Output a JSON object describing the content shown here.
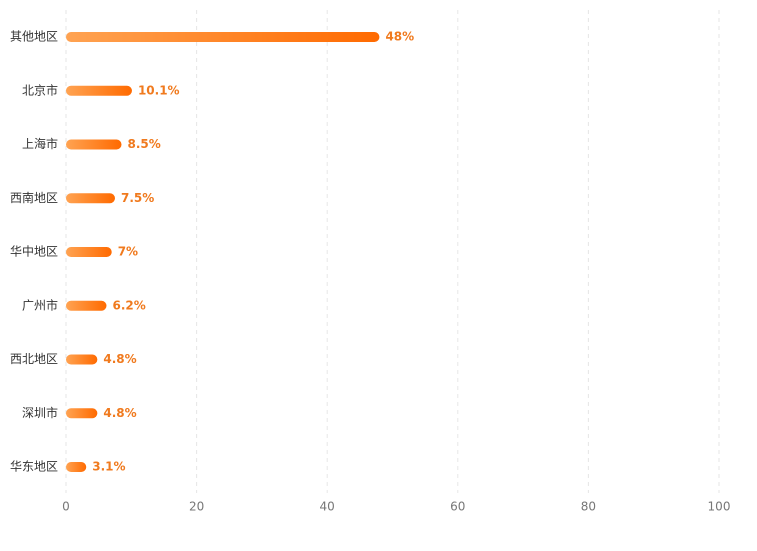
{
  "chart_data": {
    "type": "bar",
    "orientation": "horizontal",
    "categories": [
      "其他地区",
      "北京市",
      "上海市",
      "西南地区",
      "华中地区",
      "广州市",
      "西北地区",
      "深圳市",
      "华东地区"
    ],
    "values": [
      48,
      10.1,
      8.5,
      7.5,
      7,
      6.2,
      4.8,
      4.8,
      3.1
    ],
    "value_labels": [
      "48%",
      "10.1%",
      "8.5%",
      "7.5%",
      "7%",
      "6.2%",
      "4.8%",
      "4.8%",
      "3.1%"
    ],
    "gradient": [
      "#ffa352",
      "#ff6a00"
    ],
    "label_color": "#f07a1e",
    "xlim": [
      0,
      100
    ],
    "xticks": [
      0,
      20,
      40,
      60,
      80,
      100
    ],
    "grid": true
  }
}
